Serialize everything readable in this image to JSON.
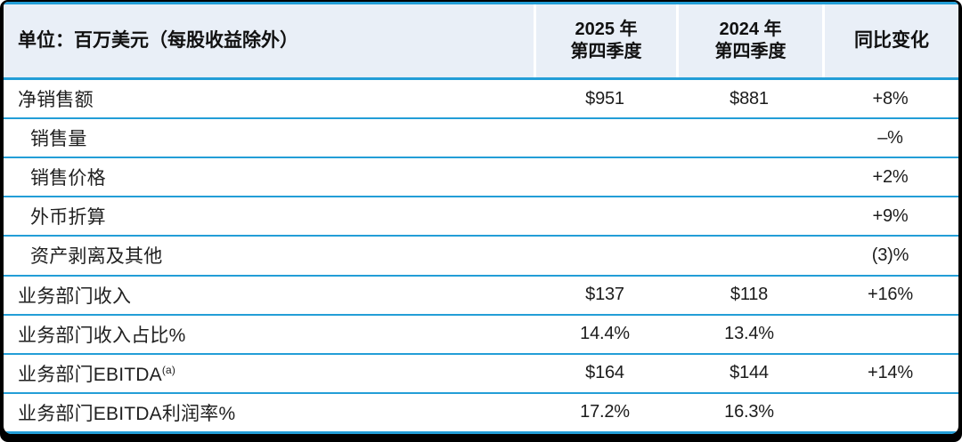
{
  "chart_data": {
    "type": "table",
    "title": "单位：百万美元（每股收益除外）",
    "columns": [
      "单位：百万美元（每股收益除外）",
      "2025 年第四季度",
      "2024 年第四季度",
      "同比变化"
    ],
    "rows": [
      [
        "净销售额",
        "$951",
        "$881",
        "+8%"
      ],
      [
        "销售量",
        "",
        "",
        "–%"
      ],
      [
        "销售价格",
        "",
        "",
        "+2%"
      ],
      [
        "外币折算",
        "",
        "",
        "+9%"
      ],
      [
        "资产剥离及其他",
        "",
        "",
        "(3)%"
      ],
      [
        "业务部门收入",
        "$137",
        "$118",
        "+16%"
      ],
      [
        "业务部门收入占比%",
        "14.4%",
        "13.4%",
        ""
      ],
      [
        "业务部门EBITDA(a)",
        "$164",
        "$144",
        "+14%"
      ],
      [
        "业务部门EBITDA利润率%",
        "17.2%",
        "16.3%",
        ""
      ]
    ]
  },
  "header": {
    "unit_label": "单位：百万美元（每股收益除外）",
    "col_2025_line1": "2025 年",
    "col_2025_line2": "第四季度",
    "col_2024_line1": "2024 年",
    "col_2024_line2": "第四季度",
    "col_change": "同比变化"
  },
  "rows": [
    {
      "label": "净销售额",
      "q4_2025": "$951",
      "q4_2024": "$881",
      "yoy_change": "+8%"
    },
    {
      "label": "销售量",
      "q4_2025": "",
      "q4_2024": "",
      "yoy_change": "–%"
    },
    {
      "label": "销售价格",
      "q4_2025": "",
      "q4_2024": "",
      "yoy_change": "+2%"
    },
    {
      "label": "外币折算",
      "q4_2025": "",
      "q4_2024": "",
      "yoy_change": "+9%"
    },
    {
      "label": "资产剥离及其他",
      "q4_2025": "",
      "q4_2024": "",
      "yoy_change": "(3)%"
    },
    {
      "label": "业务部门收入",
      "q4_2025": "$137",
      "q4_2024": "$118",
      "yoy_change": "+16%"
    },
    {
      "label": "业务部门收入占比%",
      "q4_2025": "14.4%",
      "q4_2024": "13.4%",
      "yoy_change": ""
    },
    {
      "label": "业务部门EBITDA",
      "label_sup": "(a)",
      "q4_2025": "$164",
      "q4_2024": "$144",
      "yoy_change": "+14%"
    },
    {
      "label": "业务部门EBITDA利润率%",
      "q4_2025": "17.2%",
      "q4_2024": "16.3%",
      "yoy_change": ""
    }
  ],
  "colors": {
    "accent_line": "#239ed7",
    "header_bg": "#e9eff7",
    "frame": "#000000"
  }
}
